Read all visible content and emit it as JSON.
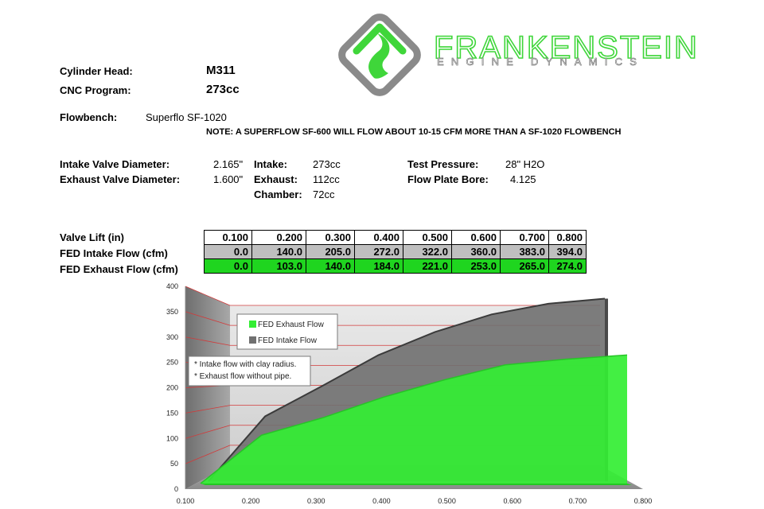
{
  "header": {
    "cylinder_head_label": "Cylinder Head:",
    "cylinder_head_value": "M311",
    "cnc_program_label": "CNC Program:",
    "cnc_program_value": "273cc",
    "flowbench_label": "Flowbench:",
    "flowbench_value": "Superflo SF-1020",
    "note": "NOTE: A SUPERFLOW SF-600 WILL FLOW ABOUT 10-15 CFM MORE THAN A SF-1020 FLOWBENCH"
  },
  "brand": {
    "name": "FRANKENSTEIN",
    "tagline": "ENGINE DYNAMICS",
    "accent_color": "#3fd63a",
    "logo_icon": "flame-icon"
  },
  "specs": {
    "intake_valve_label": "Intake Valve Diameter:",
    "intake_valve_value": "2.165\"",
    "exhaust_valve_label": "Exhaust Valve Diameter:",
    "exhaust_valve_value": "1.600\"",
    "intake_label": "Intake:",
    "intake_value": "273cc",
    "exhaust_label": "Exhaust:",
    "exhaust_value": "112cc",
    "chamber_label": "Chamber:",
    "chamber_value": "72cc",
    "test_pressure_label": "Test Pressure:",
    "test_pressure_value": "28\" H2O",
    "flow_plate_label": "Flow Plate Bore:",
    "flow_plate_value": "4.125"
  },
  "table": {
    "lift_label": "Valve Lift (in)",
    "intake_label": "FED Intake Flow (cfm)",
    "exhaust_label": "FED Exhaust Flow (cfm)",
    "lift": [
      "0.100",
      "0.200",
      "0.300",
      "0.400",
      "0.500",
      "0.600",
      "0.700",
      "0.800"
    ],
    "intake": [
      "0.0",
      "140.0",
      "205.0",
      "272.0",
      "322.0",
      "360.0",
      "383.0",
      "394.0"
    ],
    "exhaust": [
      "0.0",
      "103.0",
      "140.0",
      "184.0",
      "221.0",
      "253.0",
      "265.0",
      "274.0"
    ]
  },
  "chart_data": {
    "type": "area",
    "x": [
      0.1,
      0.2,
      0.3,
      0.4,
      0.5,
      0.6,
      0.7,
      0.8
    ],
    "x_tick_labels": [
      "0.100",
      "0.200",
      "0.300",
      "0.400",
      "0.500",
      "0.600",
      "0.700",
      "0.800"
    ],
    "y_tick_labels": [
      "0",
      "50",
      "100",
      "150",
      "200",
      "250",
      "300",
      "350",
      "400"
    ],
    "ylim": [
      0,
      400
    ],
    "xlim": [
      0.1,
      0.8
    ],
    "series": [
      {
        "name": "FED Intake Flow",
        "values": [
          0,
          140,
          205,
          272,
          322,
          360,
          383,
          394
        ],
        "color": "#707070"
      },
      {
        "name": "FED Exhaust Flow",
        "values": [
          0,
          103,
          140,
          184,
          221,
          253,
          265,
          274
        ],
        "color": "#33ee33"
      }
    ],
    "legend_position": "top-left",
    "annotations": [
      "* Intake flow with clay radius.",
      "* Exhaust flow without pipe."
    ],
    "grid": true,
    "style": "3d"
  }
}
